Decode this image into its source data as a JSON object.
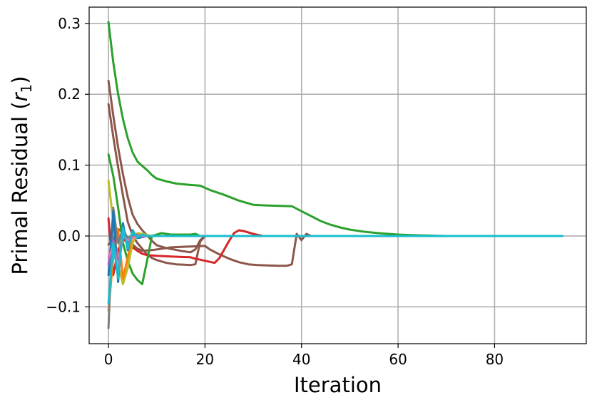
{
  "chart_data": {
    "type": "line",
    "xlabel": "Iteration",
    "ylabel_main": "Primal Residual (",
    "ylabel_var": "r",
    "ylabel_sub": "1",
    "ylabel_close": ")",
    "xlim": [
      -4,
      99
    ],
    "ylim": [
      -0.152,
      0.323
    ],
    "xticks": [
      0,
      20,
      40,
      60,
      80
    ],
    "xtick_labels": [
      "0",
      "20",
      "40",
      "60",
      "80"
    ],
    "yticks": [
      -0.1,
      0.0,
      0.1,
      0.2,
      0.3
    ],
    "ytick_labels": [
      "−0.1",
      "0.0",
      "0.1",
      "0.2",
      "0.3"
    ],
    "grid": true,
    "series": [
      {
        "color": "#2ca02c",
        "points": [
          [
            0,
            0.302
          ],
          [
            1,
            0.245
          ],
          [
            2,
            0.2
          ],
          [
            3,
            0.165
          ],
          [
            4,
            0.138
          ],
          [
            5,
            0.118
          ],
          [
            6,
            0.105
          ],
          [
            7,
            0.099
          ],
          [
            8,
            0.093
          ],
          [
            9,
            0.086
          ],
          [
            10,
            0.081
          ],
          [
            12,
            0.077
          ],
          [
            14,
            0.074
          ],
          [
            17,
            0.072
          ],
          [
            19,
            0.071
          ],
          [
            21,
            0.065
          ],
          [
            24,
            0.058
          ],
          [
            27,
            0.05
          ],
          [
            30,
            0.044
          ],
          [
            33,
            0.043
          ],
          [
            38,
            0.042
          ],
          [
            40,
            0.035
          ],
          [
            42,
            0.028
          ],
          [
            44,
            0.021
          ],
          [
            46,
            0.016
          ],
          [
            48,
            0.012
          ],
          [
            50,
            0.009
          ],
          [
            53,
            0.006
          ],
          [
            56,
            0.004
          ],
          [
            60,
            0.002
          ],
          [
            64,
            0.001
          ],
          [
            70,
            0.0
          ],
          [
            80,
            0.0
          ],
          [
            94,
            0.0
          ]
        ]
      },
      {
        "color": "#8c564b",
        "points": [
          [
            0,
            0.219
          ],
          [
            1,
            0.17
          ],
          [
            2,
            0.125
          ],
          [
            3,
            0.087
          ],
          [
            4,
            0.055
          ],
          [
            5,
            0.03
          ],
          [
            6,
            0.017
          ],
          [
            7,
            0.008
          ],
          [
            8,
            0.001
          ],
          [
            9,
            -0.007
          ],
          [
            10,
            -0.013
          ],
          [
            12,
            -0.017
          ],
          [
            15,
            -0.021
          ],
          [
            17,
            -0.023
          ],
          [
            18,
            -0.019
          ],
          [
            19,
            -0.006
          ],
          [
            20,
            0.0
          ],
          [
            25,
            0.0
          ],
          [
            94,
            0.0
          ]
        ]
      },
      {
        "color": "#8c564b",
        "points": [
          [
            0,
            0.186
          ],
          [
            1,
            0.14
          ],
          [
            2,
            0.097
          ],
          [
            3,
            0.057
          ],
          [
            4,
            0.02
          ],
          [
            5,
            0.001
          ],
          [
            6,
            -0.01
          ],
          [
            7,
            -0.018
          ],
          [
            8,
            -0.026
          ],
          [
            9,
            -0.031
          ],
          [
            10,
            -0.034
          ],
          [
            12,
            -0.038
          ],
          [
            14,
            -0.04
          ],
          [
            17,
            -0.041
          ],
          [
            18,
            -0.04
          ],
          [
            19,
            -0.008
          ],
          [
            20,
            0.0
          ],
          [
            94,
            0.0
          ]
        ]
      },
      {
        "color": "#8c564b",
        "points": [
          [
            0,
            -0.012
          ],
          [
            1,
            -0.005
          ],
          [
            2,
            0.01
          ],
          [
            3,
            0.005
          ],
          [
            4,
            -0.002
          ],
          [
            5,
            -0.012
          ],
          [
            6,
            -0.018
          ],
          [
            7,
            -0.021
          ],
          [
            9,
            -0.02
          ],
          [
            13,
            -0.016
          ],
          [
            20,
            -0.014
          ],
          [
            21,
            -0.019
          ],
          [
            23,
            -0.026
          ],
          [
            25,
            -0.032
          ],
          [
            27,
            -0.037
          ],
          [
            29,
            -0.04
          ],
          [
            31,
            -0.041
          ],
          [
            35,
            -0.042
          ],
          [
            37,
            -0.042
          ],
          [
            38,
            -0.04
          ],
          [
            39,
            0.003
          ],
          [
            40,
            -0.006
          ],
          [
            41,
            0.003
          ],
          [
            42,
            0.0
          ],
          [
            94,
            0.0
          ]
        ]
      },
      {
        "color": "#d62728",
        "points": [
          [
            0,
            0.025
          ],
          [
            1,
            -0.055
          ],
          [
            2,
            -0.02
          ],
          [
            3,
            -0.004
          ],
          [
            4,
            -0.01
          ],
          [
            5,
            -0.016
          ],
          [
            6,
            -0.021
          ],
          [
            7,
            -0.025
          ],
          [
            8,
            -0.027
          ],
          [
            10,
            -0.028
          ],
          [
            13,
            -0.029
          ],
          [
            17,
            -0.03
          ],
          [
            18,
            -0.032
          ],
          [
            20,
            -0.035
          ],
          [
            22,
            -0.038
          ],
          [
            23,
            -0.031
          ],
          [
            24,
            -0.019
          ],
          [
            25,
            -0.007
          ],
          [
            26,
            0.004
          ],
          [
            27,
            0.008
          ],
          [
            28,
            0.007
          ],
          [
            30,
            0.003
          ],
          [
            32,
            0.0
          ],
          [
            94,
            0.0
          ]
        ]
      },
      {
        "color": "#2ca02c",
        "points": [
          [
            0,
            0.115
          ],
          [
            1,
            0.085
          ],
          [
            2,
            0.04
          ],
          [
            3,
            -0.01
          ],
          [
            4,
            -0.035
          ],
          [
            5,
            -0.053
          ],
          [
            6,
            -0.062
          ],
          [
            7,
            -0.068
          ],
          [
            8,
            -0.035
          ],
          [
            9,
            0.0
          ],
          [
            11,
            0.004
          ],
          [
            13,
            0.002
          ],
          [
            17,
            0.002
          ],
          [
            18,
            0.003
          ],
          [
            19,
            0.0
          ],
          [
            94,
            0.0
          ]
        ]
      },
      {
        "color": "#bcbd22",
        "points": [
          [
            0,
            0.078
          ],
          [
            1,
            0.02
          ],
          [
            2,
            -0.04
          ],
          [
            3,
            -0.068
          ],
          [
            4,
            -0.045
          ],
          [
            5,
            -0.01
          ],
          [
            6,
            0.004
          ],
          [
            7,
            0.003
          ],
          [
            9,
            0.0
          ],
          [
            94,
            0.0
          ]
        ]
      },
      {
        "color": "#ff7f0e",
        "points": [
          [
            0,
            -0.105
          ],
          [
            1,
            -0.03
          ],
          [
            2,
            0.01
          ],
          [
            3,
            -0.06
          ],
          [
            4,
            -0.03
          ],
          [
            5,
            0.002
          ],
          [
            6,
            0.0
          ],
          [
            94,
            0.0
          ]
        ]
      },
      {
        "color": "#7f7f7f",
        "points": [
          [
            0,
            -0.13
          ],
          [
            1,
            0.04
          ],
          [
            2,
            -0.01
          ],
          [
            3,
            0.01
          ],
          [
            4,
            -0.004
          ],
          [
            5,
            0.002
          ],
          [
            6,
            0.0
          ],
          [
            94,
            0.0
          ]
        ]
      },
      {
        "color": "#1f77b4",
        "points": [
          [
            0,
            -0.055
          ],
          [
            1,
            0.035
          ],
          [
            2,
            -0.065
          ],
          [
            3,
            0.018
          ],
          [
            4,
            -0.02
          ],
          [
            5,
            0.008
          ],
          [
            6,
            -0.003
          ],
          [
            8,
            0.0
          ],
          [
            94,
            0.0
          ]
        ]
      },
      {
        "color": "#9467bd",
        "points": [
          [
            0,
            -0.04
          ],
          [
            1,
            -0.005
          ],
          [
            2,
            -0.04
          ],
          [
            3,
            0.005
          ],
          [
            4,
            -0.01
          ],
          [
            5,
            0.003
          ],
          [
            7,
            0.0
          ],
          [
            94,
            0.0
          ]
        ]
      },
      {
        "color": "#e377c2",
        "points": [
          [
            0,
            -0.03
          ],
          [
            1,
            -0.015
          ],
          [
            2,
            -0.045
          ],
          [
            3,
            0.0
          ],
          [
            4,
            -0.006
          ],
          [
            6,
            0.0
          ],
          [
            94,
            0.0
          ]
        ]
      },
      {
        "color": "#17becf",
        "points": [
          [
            0,
            -0.095
          ],
          [
            1,
            -0.01
          ],
          [
            2,
            -0.06
          ],
          [
            3,
            0.012
          ],
          [
            4,
            -0.018
          ],
          [
            5,
            0.006
          ],
          [
            6,
            -0.002
          ],
          [
            7,
            0.002
          ],
          [
            8,
            0.0
          ],
          [
            94,
            0.0
          ]
        ]
      }
    ]
  }
}
